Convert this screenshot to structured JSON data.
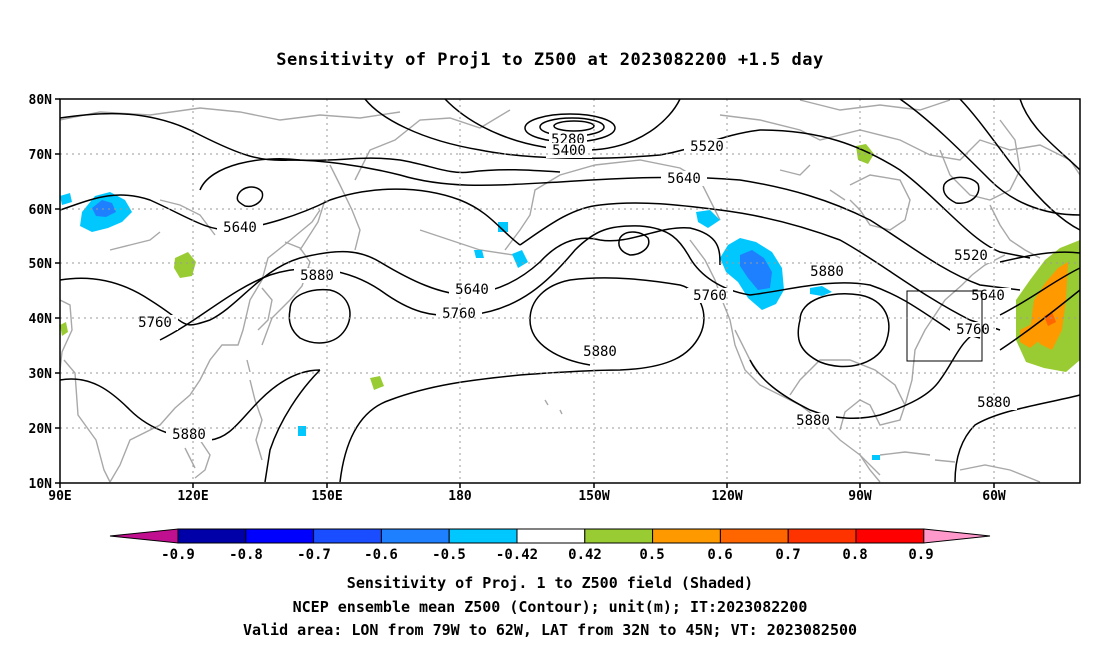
{
  "title": "Sensitivity of Proj1 to Z500 at 2023082200 +1.5 day",
  "map": {
    "lon_labels": [
      "90E",
      "120E",
      "150E",
      "180",
      "150W",
      "120W",
      "90W",
      "60W"
    ],
    "lat_labels": [
      "80N",
      "70N",
      "60N",
      "50N",
      "40N",
      "30N",
      "20N",
      "10N"
    ],
    "extent": {
      "lon_range_east_deg": [
        90,
        310
      ],
      "lat_range": [
        10,
        80
      ]
    },
    "grid": "dotted",
    "contour_labels": [
      "5280",
      "5400",
      "5520",
      "5640",
      "5640",
      "5880",
      "5760",
      "5640",
      "5760",
      "5880",
      "5760",
      "5880",
      "5520",
      "5640",
      "5760",
      "5880",
      "5880",
      "5880"
    ],
    "valid_area": {
      "lon": [
        "79W",
        "62W"
      ],
      "lat": [
        "32N",
        "45N"
      ]
    }
  },
  "colorbar": {
    "labels": [
      "-0.9",
      "-0.8",
      "-0.7",
      "-0.6",
      "-0.5",
      "-0.42",
      "0.42",
      "0.5",
      "0.6",
      "0.7",
      "0.8",
      "0.9"
    ],
    "colors": [
      "#c0108f",
      "#0000a8",
      "#0000ff",
      "#1a4dff",
      "#1f80ff",
      "#00c8ff",
      "#ffffff",
      "#99cc33",
      "#ff9900",
      "#ff6600",
      "#ff3300",
      "#ff0000",
      "#ff99cc"
    ]
  },
  "captions": {
    "line1": "Sensitivity of Proj. 1 to Z500 field (Shaded)",
    "line2": "NCEP ensemble mean Z500 (Contour); unit(m); IT:2023082200",
    "line3": "Valid area: LON from 79W to 62W, LAT from 32N to 45N; VT: 2023082500"
  }
}
